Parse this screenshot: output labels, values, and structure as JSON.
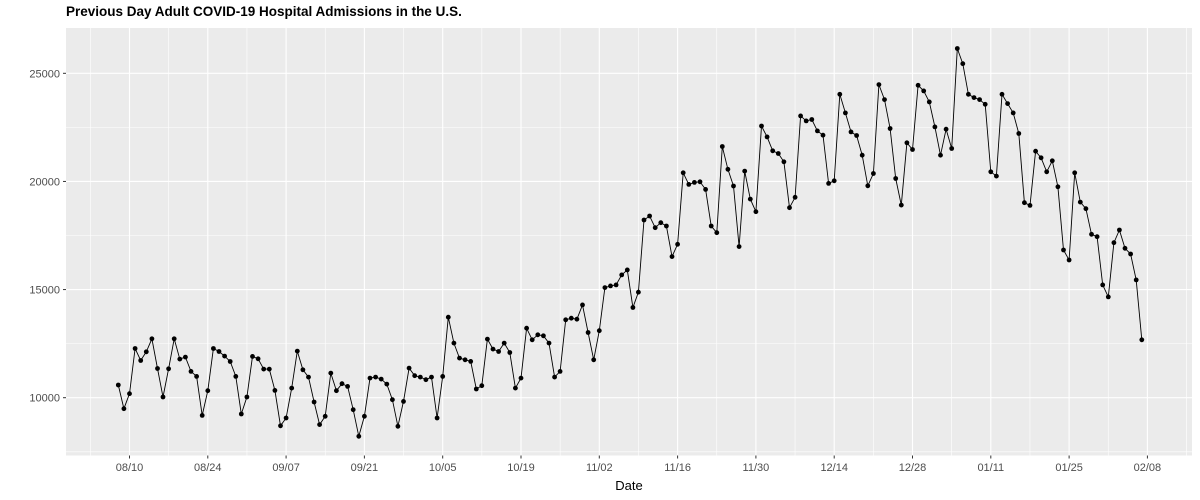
{
  "title": "Previous Day Adult COVID-19 Hospital Admissions in the U.S.",
  "chart_data": {
    "type": "line",
    "title": "Previous Day Adult COVID-19 Hospital Admissions in the U.S.",
    "xlabel": "Date",
    "ylabel": "",
    "ylim": [
      7350,
      27095
    ],
    "grid": "on",
    "legend": "none",
    "x_major_ticks": [
      "08/10",
      "08/24",
      "09/07",
      "09/21",
      "10/05",
      "10/19",
      "11/02",
      "11/16",
      "11/30",
      "12/14",
      "12/28",
      "01/11",
      "01/25",
      "02/08"
    ],
    "x_minor_ticks": [
      "08/03",
      "08/17",
      "08/31",
      "09/14",
      "09/28",
      "10/12",
      "10/26",
      "11/09",
      "11/23",
      "12/07",
      "12/21",
      "01/04",
      "01/18",
      "02/01",
      "02/15"
    ],
    "y_major_ticks": [
      10000,
      15000,
      20000,
      25000
    ],
    "y_minor_ticks": [
      7500,
      12500,
      17500,
      22500
    ],
    "start_date": "08/08",
    "end_date": "02/07",
    "dates": [
      "08/08",
      "08/09",
      "08/10",
      "08/11",
      "08/12",
      "08/13",
      "08/14",
      "08/15",
      "08/16",
      "08/17",
      "08/18",
      "08/19",
      "08/20",
      "08/21",
      "08/22",
      "08/23",
      "08/24",
      "08/25",
      "08/26",
      "08/27",
      "08/28",
      "08/29",
      "08/30",
      "08/31",
      "09/01",
      "09/02",
      "09/03",
      "09/04",
      "09/05",
      "09/06",
      "09/07",
      "09/08",
      "09/09",
      "09/10",
      "09/11",
      "09/12",
      "09/13",
      "09/14",
      "09/15",
      "09/16",
      "09/17",
      "09/18",
      "09/19",
      "09/20",
      "09/21",
      "09/22",
      "09/23",
      "09/24",
      "09/25",
      "09/26",
      "09/27",
      "09/28",
      "09/29",
      "09/30",
      "10/01",
      "10/02",
      "10/03",
      "10/04",
      "10/05",
      "10/06",
      "10/07",
      "10/08",
      "10/09",
      "10/10",
      "10/11",
      "10/12",
      "10/13",
      "10/14",
      "10/15",
      "10/16",
      "10/17",
      "10/18",
      "10/19",
      "10/20",
      "10/21",
      "10/22",
      "10/23",
      "10/24",
      "10/25",
      "10/26",
      "10/27",
      "10/28",
      "10/29",
      "10/30",
      "10/31",
      "11/01",
      "11/02",
      "11/03",
      "11/04",
      "11/05",
      "11/06",
      "11/07",
      "11/08",
      "11/09",
      "11/10",
      "11/11",
      "11/12",
      "11/13",
      "11/14",
      "11/15",
      "11/16",
      "11/17",
      "11/18",
      "11/19",
      "11/20",
      "11/21",
      "11/22",
      "11/23",
      "11/24",
      "11/25",
      "11/26",
      "11/27",
      "11/28",
      "11/29",
      "11/30",
      "12/01",
      "12/02",
      "12/03",
      "12/04",
      "12/05",
      "12/06",
      "12/07",
      "12/08",
      "12/09",
      "12/10",
      "12/11",
      "12/12",
      "12/13",
      "12/14",
      "12/15",
      "12/16",
      "12/17",
      "12/18",
      "12/19",
      "12/20",
      "12/21",
      "12/22",
      "12/23",
      "12/24",
      "12/25",
      "12/26",
      "12/27",
      "12/28",
      "12/29",
      "12/30",
      "12/31",
      "01/01",
      "01/02",
      "01/03",
      "01/04",
      "01/05",
      "01/06",
      "01/07",
      "01/08",
      "01/09",
      "01/10",
      "01/11",
      "01/12",
      "01/13",
      "01/14",
      "01/15",
      "01/16",
      "01/17",
      "01/18",
      "01/19",
      "01/20",
      "01/21",
      "01/22",
      "01/23",
      "01/24",
      "01/25",
      "01/26",
      "01/27",
      "01/28",
      "01/29",
      "01/30",
      "01/31",
      "02/01",
      "02/02",
      "02/03",
      "02/04",
      "02/05",
      "02/06",
      "02/07"
    ],
    "values": [
      10586,
      9492,
      10185,
      12275,
      11721,
      12123,
      12723,
      11352,
      10031,
      11338,
      12723,
      11786,
      11878,
      11214,
      10983,
      9183,
      10323,
      12275,
      12137,
      11923,
      11675,
      10983,
      9247,
      10031,
      11908,
      11800,
      11323,
      11323,
      10338,
      8700,
      9062,
      10446,
      12154,
      11292,
      10954,
      9800,
      8754,
      9138,
      11138,
      10323,
      10646,
      10523,
      9446,
      8215,
      9138,
      10908,
      10954,
      10862,
      10631,
      9908,
      8677,
      9831,
      11369,
      11015,
      10954,
      10831,
      10954,
      9062,
      10985,
      13723,
      12523,
      11831,
      11754,
      11677,
      10400,
      10554,
      12708,
      12246,
      12138,
      12523,
      12092,
      10446,
      10908,
      13215,
      12677,
      12908,
      12862,
      12523,
      10954,
      11215,
      13600,
      13677,
      13631,
      14292,
      13015,
      11754,
      13100,
      15090,
      15169,
      15215,
      15677,
      15908,
      14169,
      14877,
      18215,
      18400,
      17862,
      18092,
      17938,
      16523,
      17092,
      20398,
      19862,
      19954,
      19985,
      19631,
      17938,
      17631,
      21614,
      20560,
      19789,
      16985,
      20477,
      19185,
      18600,
      22565,
      22060,
      21415,
      21292,
      20908,
      18785,
      19267,
      23029,
      22798,
      22862,
      22338,
      22138,
      19908,
      20031,
      24031,
      23169,
      22292,
      22123,
      21215,
      19800,
      20369,
      24477,
      23785,
      22446,
      20138,
      18908,
      21785,
      21477,
      24446,
      24185,
      23677,
      22523,
      21215,
      22415,
      21523,
      26146,
      25446,
      24031,
      23877,
      23785,
      23569,
      20446,
      20246,
      24031,
      23600,
      23169,
      22215,
      19015,
      18892,
      21400,
      21092,
      20446,
      20954,
      19754,
      16831,
      16369,
      20400,
      19046,
      18738,
      17554,
      17446,
      15215,
      14662,
      17169,
      17754,
      16908,
      16646,
      15446,
      12677
    ],
    "colors": {
      "panel_bg": "#EBEBEB",
      "grid": "#FFFFFF",
      "series": "#000000",
      "axis_text": "#4D4D4D",
      "title_text": "#000000",
      "tick_mark": "#333333",
      "plot_bg": "#FFFFFF"
    }
  }
}
